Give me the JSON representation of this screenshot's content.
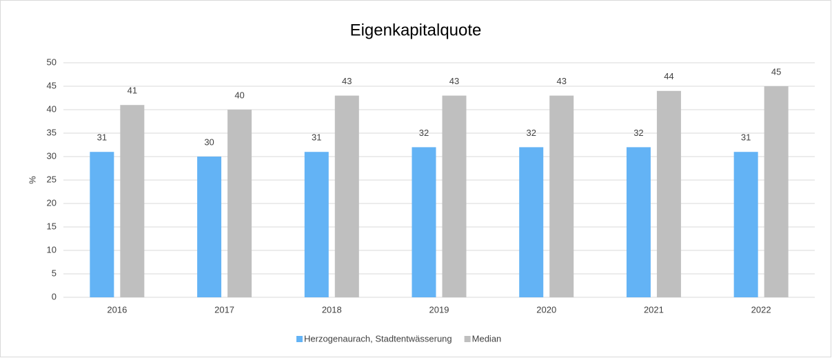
{
  "chart_data": {
    "type": "bar",
    "title": "Eigenkapitalquote",
    "y_label": "%",
    "categories": [
      "2016",
      "2017",
      "2018",
      "2019",
      "2020",
      "2021",
      "2022"
    ],
    "series": [
      {
        "name": "Herzogenaurach, Stadtentwässerung",
        "color": "#63b3f5",
        "values": [
          31,
          30,
          31,
          32,
          32,
          32,
          31
        ]
      },
      {
        "name": "Median",
        "color": "#bfbfbf",
        "values": [
          41,
          40,
          43,
          43,
          43,
          44,
          45
        ]
      }
    ],
    "ylim": [
      0,
      50
    ],
    "yticks": [
      0,
      5,
      10,
      15,
      20,
      25,
      30,
      35,
      40,
      45,
      50
    ],
    "grid": true,
    "legend": "bottom"
  }
}
